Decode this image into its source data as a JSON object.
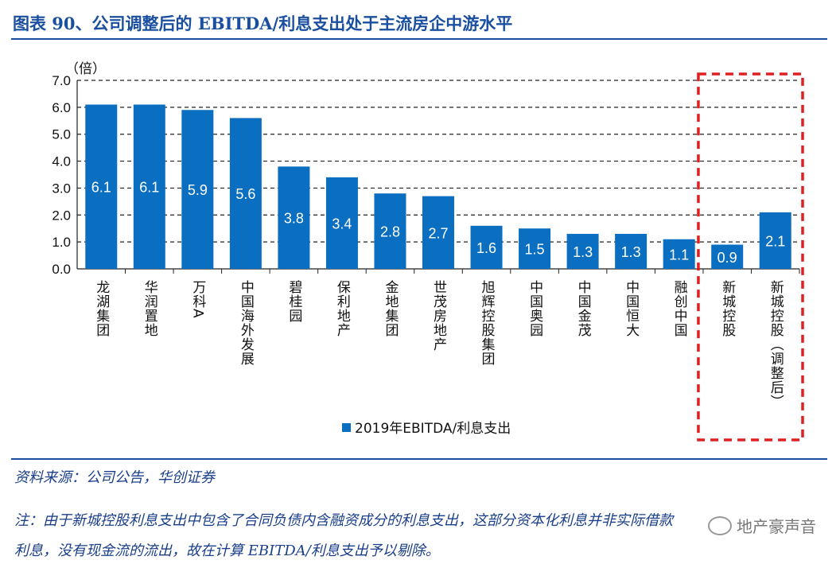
{
  "title": "图表 90、公司调整后的 EBITDA/利息支出处于主流房企中游水平",
  "unit": "（倍）",
  "chart_data": {
    "type": "bar",
    "categories": [
      "龙湖集团",
      "华润置地",
      "万科A",
      "中国海外发展",
      "碧桂园",
      "保利地产",
      "金地集团",
      "世茂房地产",
      "旭辉控股集团",
      "中国奥园",
      "中国金茂",
      "中国恒大",
      "融创中国",
      "新城控股",
      "新城控股（调整后）"
    ],
    "series": [
      {
        "name": "2019年EBITDA/利息支出",
        "values": [
          6.1,
          6.1,
          5.9,
          5.6,
          3.8,
          3.4,
          2.8,
          2.7,
          1.6,
          1.5,
          1.3,
          1.3,
          1.1,
          0.9,
          2.1
        ]
      }
    ],
    "data_labels": [
      "6.1",
      "6.1",
      "5.9",
      "5.6",
      "3.8",
      "3.4",
      "2.8",
      "2.7",
      "1.6",
      "1.5",
      "1.3",
      "1.3",
      "1.1",
      "0.9",
      "2.1"
    ],
    "y_ticks": [
      "0.0",
      "1.0",
      "2.0",
      "3.0",
      "4.0",
      "5.0",
      "6.0",
      "7.0"
    ],
    "ylim": [
      0,
      7
    ],
    "grid": true,
    "legend": "bottom-center",
    "highlight_categories": [
      "新城控股",
      "新城控股（调整后）"
    ],
    "bar_color": "#0b6fc1",
    "highlight_color": "#e02020"
  },
  "source": "资料来源：公司公告，华创证券",
  "note_line1": "注：由于新城控股利息支出中包含了合同负债内含融资成分的利息支出，这部分资本化利息并非实际借款",
  "note_line2": "利息，没有现金流的流出，故在计算 EBITDA/利息支出予以剔除。",
  "watermark": "地产豪声音"
}
